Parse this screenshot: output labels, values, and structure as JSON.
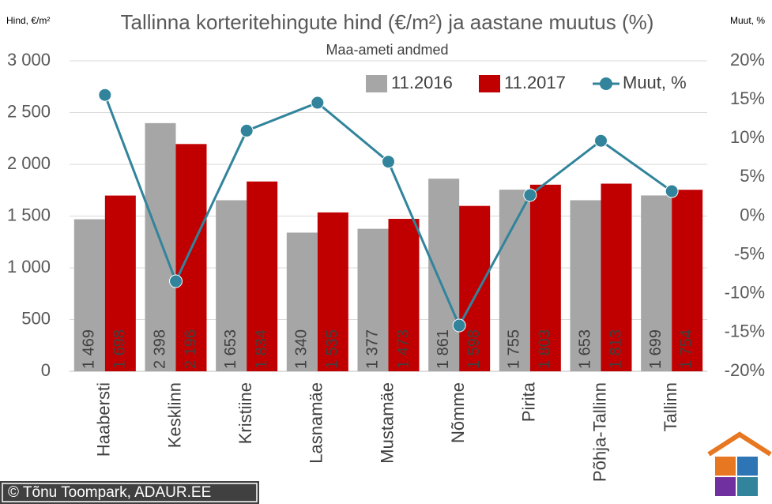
{
  "chart_data": {
    "type": "bar",
    "title": "Tallinna korteritehingute hind (€/m²) ja aastane muutus (%)",
    "subtitle": "Maa-ameti andmed",
    "y_label": "Hind, €/m²",
    "y2_label": "Muut, %",
    "credit": "© Tõnu Toompark, ADAUR.EE",
    "categories": [
      "Haabersti",
      "Kesklinn",
      "Kristiine",
      "Lasnamäe",
      "Mustamäe",
      "Nõmme",
      "Pirita",
      "Põhja-Tallinn",
      "Tallinn"
    ],
    "series": [
      {
        "name": "11.2016",
        "color": "#a6a6a6",
        "values": [
          1469,
          2398,
          1653,
          1340,
          1377,
          1861,
          1755,
          1653,
          1699
        ],
        "value_labels": [
          "1 469",
          "2 398",
          "1 653",
          "1 340",
          "1 377",
          "1 861",
          "1 755",
          "1 653",
          "1 699"
        ]
      },
      {
        "name": "11.2017",
        "color": "#c00000",
        "values": [
          1698,
          2196,
          1834,
          1535,
          1473,
          1598,
          1803,
          1813,
          1754
        ],
        "value_labels": [
          "1 698",
          "2 196",
          "1 834",
          "1 535",
          "1 473",
          "1 598",
          "1 803",
          "1 813",
          "1 754"
        ]
      },
      {
        "name": "Muut, %",
        "type": "line",
        "axis": "y2",
        "color": "#31849b",
        "values": [
          15.6,
          -8.4,
          11.0,
          14.6,
          7.0,
          -14.1,
          2.7,
          9.7,
          3.2
        ]
      }
    ],
    "ylim": [
      0,
      3000
    ],
    "yticks": [
      0,
      500,
      {
        "value": 1000,
        "label": "1 000"
      },
      {
        "value": 1500,
        "label": "1 500"
      },
      {
        "value": 2000,
        "label": "2 000"
      },
      {
        "value": 2500,
        "label": "2 500"
      },
      {
        "value": 3000,
        "label": "3 000"
      }
    ],
    "y2lim": [
      -20,
      20
    ],
    "y2ticks": [
      {
        "value": -20,
        "label": "-20%"
      },
      {
        "value": -15,
        "label": "-15%"
      },
      {
        "value": -10,
        "label": "-10%"
      },
      {
        "value": -5,
        "label": "-5%"
      },
      {
        "value": 0,
        "label": "0%"
      },
      {
        "value": 5,
        "label": "5%"
      },
      {
        "value": 10,
        "label": "10%"
      },
      {
        "value": 15,
        "label": "15%"
      },
      {
        "value": 20,
        "label": "20%"
      }
    ],
    "grid": true
  }
}
